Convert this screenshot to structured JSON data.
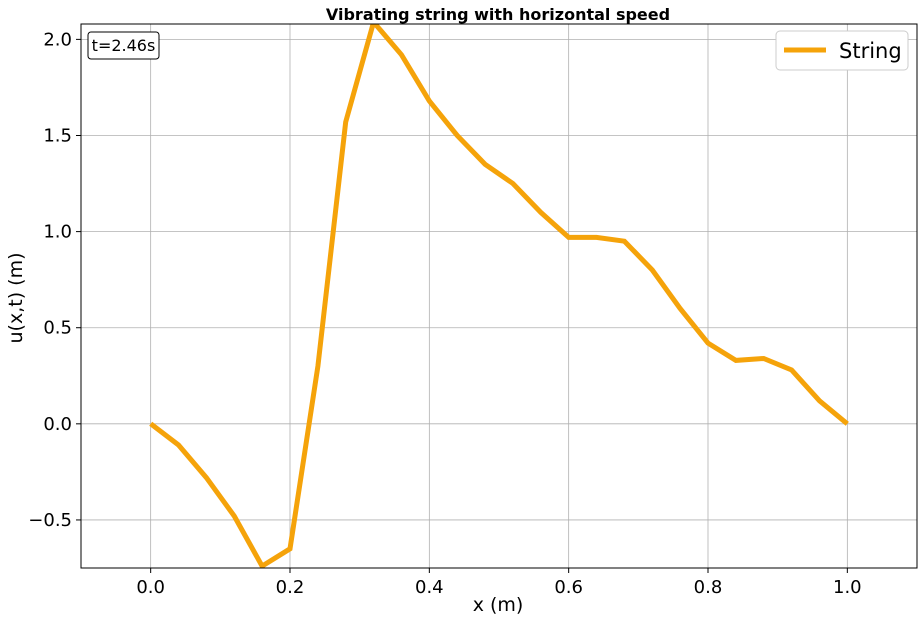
{
  "chart_data": {
    "type": "line",
    "title": "Vibrating string with horizontal speed",
    "xlabel": "x (m)",
    "ylabel": "u(x,t) (m)",
    "xlim": [
      -0.1,
      1.1
    ],
    "ylim": [
      -0.75,
      2.08
    ],
    "xticks": [
      0.0,
      0.2,
      0.4,
      0.6,
      0.8,
      1.0
    ],
    "xtick_labels": [
      "0.0",
      "0.2",
      "0.4",
      "0.6",
      "0.8",
      "1.0"
    ],
    "yticks": [
      -0.5,
      0.0,
      0.5,
      1.0,
      1.5,
      2.0
    ],
    "ytick_labels": [
      "−0.5",
      "0.0",
      "0.5",
      "1.0",
      "1.5",
      "2.0"
    ],
    "grid": true,
    "legend_position": "top-right",
    "annotation": "t=2.46s",
    "series": [
      {
        "name": "String",
        "color": "#f5a30a",
        "x": [
          0.0,
          0.04,
          0.08,
          0.12,
          0.16,
          0.2,
          0.24,
          0.28,
          0.32,
          0.36,
          0.4,
          0.44,
          0.48,
          0.52,
          0.56,
          0.6,
          0.64,
          0.68,
          0.72,
          0.76,
          0.8,
          0.84,
          0.88,
          0.92,
          0.96,
          1.0
        ],
        "y": [
          0.0,
          -0.11,
          -0.28,
          -0.48,
          -0.74,
          -0.65,
          0.3,
          1.57,
          2.09,
          1.92,
          1.68,
          1.5,
          1.35,
          1.25,
          1.1,
          0.97,
          0.97,
          0.95,
          0.8,
          0.6,
          0.42,
          0.33,
          0.34,
          0.28,
          0.12,
          0.0
        ]
      }
    ]
  }
}
